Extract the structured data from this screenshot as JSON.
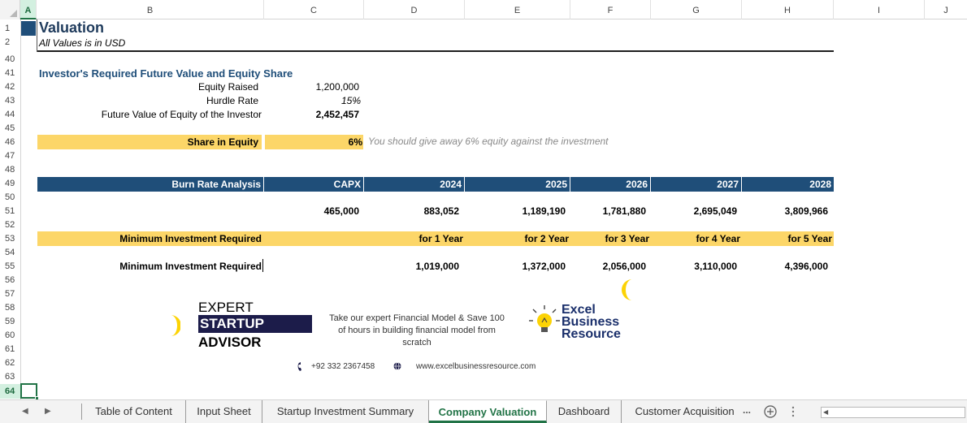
{
  "columns": [
    "A",
    "B",
    "C",
    "D",
    "E",
    "F",
    "G",
    "H",
    "I",
    "J"
  ],
  "rows": [
    "1",
    "2",
    "40",
    "41",
    "42",
    "43",
    "44",
    "45",
    "46",
    "47",
    "48",
    "49",
    "50",
    "51",
    "52",
    "53",
    "54",
    "55",
    "56",
    "57",
    "58",
    "59",
    "60",
    "61",
    "62",
    "63",
    "64"
  ],
  "sheet": {
    "title": "Valuation",
    "subtitle": "All Values is in USD",
    "investor_section": {
      "heading": "Investor's Required Future Value and Equity Share",
      "equity_raised_label": "Equity Raised",
      "equity_raised_value": "1,200,000",
      "hurdle_rate_label": "Hurdle Rate",
      "hurdle_rate_value": "15%",
      "future_value_label": "Future Value of Equity of the Investor",
      "future_value_value": "2,452,457"
    },
    "share_equity": {
      "label": "Share in Equity",
      "value": "6%",
      "note": "You should give away 6% equity against the investment"
    },
    "burn_rate": {
      "label": "Burn Rate Analysis",
      "headers": [
        "CAPX",
        "2024",
        "2025",
        "2026",
        "2027",
        "2028"
      ],
      "values": [
        "465,000",
        "883,052",
        "1,189,190",
        "1,781,880",
        "2,695,049",
        "3,809,966"
      ]
    },
    "min_investment_years": {
      "label": "Minimum Investment Required",
      "periods": [
        "for 1 Year",
        "for 2 Year",
        "for 3 Year",
        "for 4 Year",
        "for 5 Year"
      ]
    },
    "min_investment_values": {
      "label": "Minimum Investment Required",
      "values": [
        "1,019,000",
        "1,372,000",
        "2,056,000",
        "3,110,000",
        "4,396,000"
      ]
    }
  },
  "ad": {
    "brand_line1": "EXPERT",
    "brand_line2": "STARTUP",
    "brand_line3": "ADVISOR",
    "tagline_line1": "Take our expert Financial Model & Save 100",
    "tagline_line2": "of hours in building financial model from",
    "tagline_line3": "scratch",
    "phone": "+92 332 2367458",
    "website": "www.excelbusinessresource.com",
    "logo2_line1": "Excel",
    "logo2_line2": "Business",
    "logo2_line3": "Resource",
    "accent_color": "#fcd668"
  },
  "tabs": [
    {
      "label": "Table of Content",
      "active": false
    },
    {
      "label": "Input Sheet",
      "active": false
    },
    {
      "label": "Startup Investment Summary",
      "active": false
    },
    {
      "label": "Company Valuation",
      "active": true
    },
    {
      "label": "Dashboard",
      "active": false
    },
    {
      "label": "Customer Acquisition",
      "active": false
    }
  ],
  "tab_overflow": "...",
  "colors": {
    "header_blue": "#1f4e79",
    "highlight_yellow": "#fcd668",
    "excel_green": "#217346"
  }
}
